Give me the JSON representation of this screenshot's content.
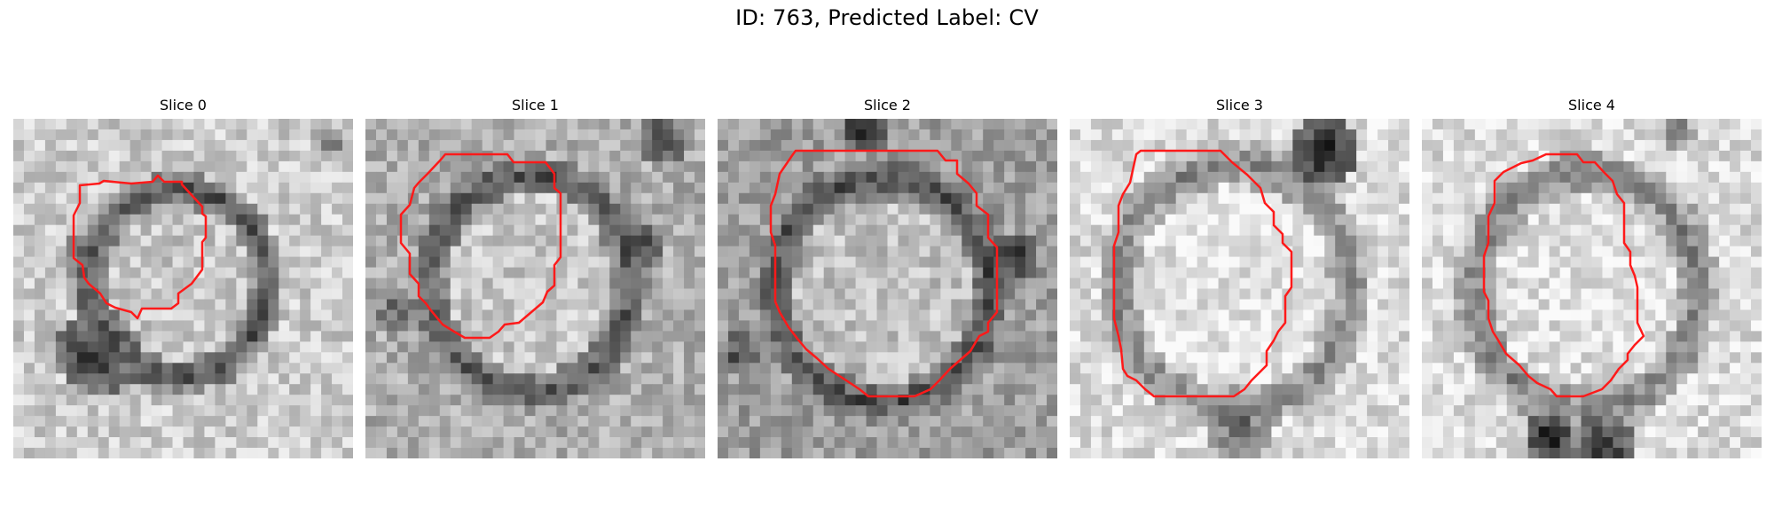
{
  "figure": {
    "title": "ID: 763, Predicted Label: CV"
  },
  "panels": [
    {
      "title": "Slice 0"
    },
    {
      "title": "Slice 1"
    },
    {
      "title": "Slice 2"
    },
    {
      "title": "Slice 3"
    },
    {
      "title": "Slice 4"
    }
  ],
  "colors": {
    "contour": "#ff1a1a"
  }
}
